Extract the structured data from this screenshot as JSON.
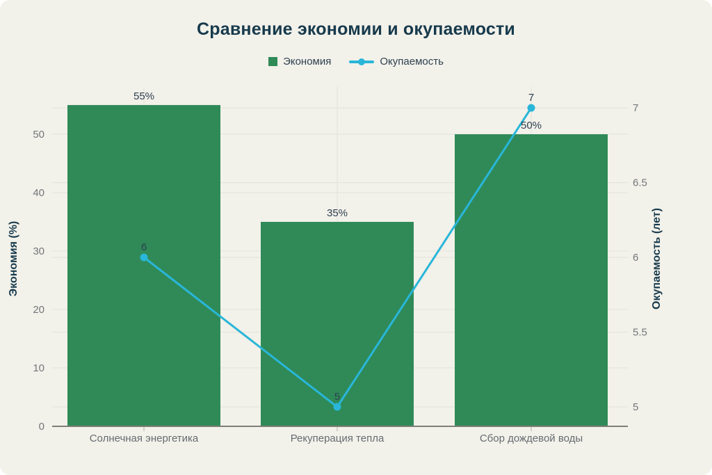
{
  "chart_data": {
    "type": "combo",
    "title": "Сравнение экономии и окупаемости",
    "categories": [
      "Солнечная энергетика",
      "Рекуперация тепла",
      "Сбор дождевой воды"
    ],
    "series": [
      {
        "name": "Экономия",
        "type": "bar",
        "axis": "left",
        "values": [
          55,
          35,
          50
        ],
        "labels": [
          "55%",
          "35%",
          "50%"
        ]
      },
      {
        "name": "Окупаемость",
        "type": "line",
        "axis": "right",
        "values": [
          6,
          5,
          7
        ],
        "labels": [
          "6",
          "5",
          "7"
        ]
      }
    ],
    "left_axis": {
      "title": "Экономия (%)",
      "ticks": [
        "0",
        "10",
        "20",
        "30",
        "40",
        "50"
      ],
      "range": [
        0,
        58.1
      ]
    },
    "right_axis": {
      "title": "Окупаемость (лет)",
      "ticks": [
        "5",
        "5.5",
        "6",
        "6.5",
        "7"
      ],
      "range": [
        4.87,
        7.14
      ]
    },
    "legend_position": "top",
    "grid": true,
    "colors": {
      "background": "#f2f1ea",
      "bar": "#2f8a58",
      "line": "#29b6d8",
      "title": "#173a4c",
      "axis_title": "#173a4c",
      "data_label": "#2e4050",
      "tick_label": "#73777a",
      "category_label": "#666c70",
      "grid": "#e3e2da",
      "axis_line": "#7f7f78",
      "category_tick": "#b3b3ab"
    }
  }
}
